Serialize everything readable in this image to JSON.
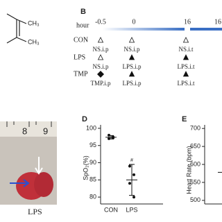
{
  "panel_a": {
    "groups": [
      "CH₃",
      "CH₃"
    ]
  },
  "panel_b": {
    "label": "B",
    "axis_label": "hour",
    "hours": [
      "-0.5",
      "0",
      "16",
      "16"
    ],
    "rows": [
      {
        "name": "CON",
        "treatments": [
          "NS.i.p",
          "NS.i.p",
          "NS.i.t"
        ]
      },
      {
        "name": "LPS",
        "treatments": [
          "NS.i.p",
          "LPS.i.p",
          "LPS.i.t"
        ]
      },
      {
        "name": "TMP",
        "treatments": [
          "TMP.i.p",
          "LPS.i.p",
          "LPS.i.t"
        ]
      }
    ]
  },
  "panel_c": {
    "ruler_marks": [
      "8",
      "9"
    ],
    "label": "LPS"
  },
  "panel_d": {
    "label": "D",
    "y_label": "SpO₂(%)",
    "categories": [
      "CON",
      "LPS"
    ],
    "ylim": [
      78,
      101
    ],
    "yticks": [
      80,
      85,
      90,
      95,
      100
    ],
    "points": [
      [
        98,
        97.5,
        97,
        97.2
      ],
      [
        89,
        86.5,
        84,
        80
      ]
    ],
    "means": [
      97.4,
      85
    ],
    "errors": [
      0.5,
      4.5
    ],
    "annotation": "#"
  },
  "panel_e": {
    "label": "E",
    "y_label": "Heart Rate (bpm)",
    "ylim": [
      490,
      710
    ],
    "yticks": [
      500,
      550,
      600,
      650,
      700
    ],
    "means": [
      578
    ]
  }
}
